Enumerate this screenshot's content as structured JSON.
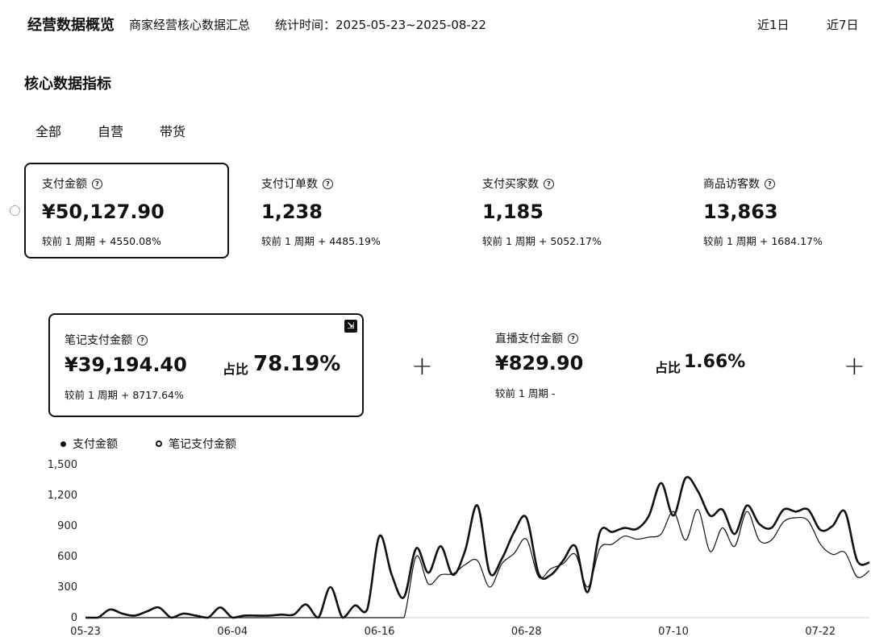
{
  "header": {
    "title": "经营数据概览",
    "subtitle": "商家经营核心数据汇总",
    "stat_time": "统计时间：2025-05-23~2025-08-22",
    "range_buttons": [
      "近1日",
      "近7日"
    ]
  },
  "section_title": "核心数据指标",
  "filter_tabs": [
    "全部",
    "自营",
    "带货"
  ],
  "metrics": [
    {
      "label": "支付金额",
      "value": "¥50,127.90",
      "compare": "较前 1 周期  + 4550.08%",
      "selected": true
    },
    {
      "label": "支付订单数",
      "value": "1,238",
      "compare": "较前 1 周期  + 4485.19%",
      "selected": false
    },
    {
      "label": "支付买家数",
      "value": "1,185",
      "compare": "较前 1 周期  + 5052.17%",
      "selected": false
    },
    {
      "label": "商品访客数",
      "value": "13,863",
      "compare": "较前 1 周期  + 1684.17%",
      "selected": false
    }
  ],
  "sub_metrics": [
    {
      "label": "笔记支付金额",
      "value": "¥39,194.40",
      "ratio_label": "占比",
      "ratio_value": "78.19%",
      "compare": "较前 1 周期  + 8717.64%",
      "selected": true
    },
    {
      "label": "直播支付金额",
      "value": "¥829.90",
      "ratio_label": "占比",
      "ratio_value": "1.66%",
      "compare": "较前 1 周期  -",
      "selected": false
    }
  ],
  "help_icon": "?",
  "plus_icon": "+",
  "badge_icon": "download-icon",
  "legend": [
    "支付金额",
    "笔记支付金额"
  ],
  "chart_data": {
    "type": "line",
    "ylim": [
      0,
      1500
    ],
    "yticks": [
      "1,500",
      "1,200",
      "900",
      "600",
      "300",
      "0"
    ],
    "ytick_values": [
      1500,
      1200,
      900,
      600,
      300,
      0
    ],
    "xtick_labels": [
      "05-23",
      "06-04",
      "06-16",
      "06-28",
      "07-10",
      "07-22"
    ],
    "xtick_index": [
      0,
      12,
      24,
      36,
      48,
      60
    ],
    "series": [
      {
        "name": "支付金额",
        "values": [
          0,
          0,
          80,
          40,
          20,
          60,
          100,
          0,
          40,
          20,
          0,
          100,
          0,
          20,
          20,
          20,
          30,
          30,
          130,
          0,
          300,
          0,
          120,
          80,
          800,
          420,
          200,
          680,
          440,
          700,
          420,
          660,
          1100,
          440,
          580,
          840,
          980,
          430,
          420,
          560,
          700,
          250,
          840,
          840,
          880,
          870,
          1000,
          1320,
          1000,
          1370,
          1240,
          1000,
          1060,
          820,
          1100,
          920,
          880,
          1060,
          1040,
          1060,
          860,
          900,
          1040,
          560,
          540
        ],
        "color": "#111111"
      },
      {
        "name": "笔记支付金额",
        "values": [
          0,
          0,
          0,
          0,
          0,
          0,
          0,
          0,
          0,
          0,
          0,
          0,
          0,
          0,
          0,
          0,
          0,
          0,
          0,
          0,
          0,
          0,
          0,
          0,
          0,
          0,
          0,
          600,
          330,
          420,
          430,
          520,
          560,
          300,
          530,
          630,
          770,
          400,
          480,
          530,
          620,
          300,
          680,
          720,
          800,
          770,
          790,
          820,
          1040,
          760,
          1060,
          650,
          880,
          700,
          1040,
          760,
          760,
          940,
          980,
          950,
          720,
          620,
          640,
          400,
          460
        ],
        "color": "#111111"
      }
    ]
  }
}
